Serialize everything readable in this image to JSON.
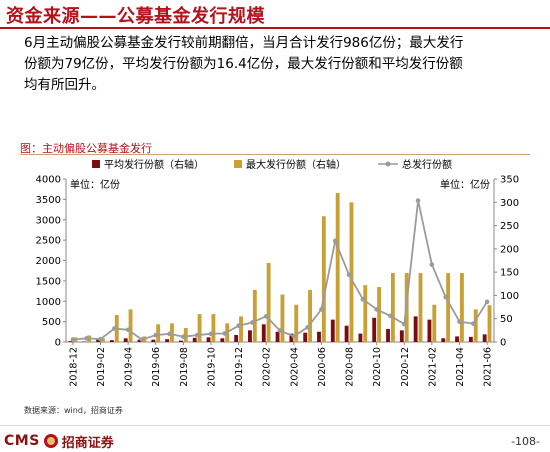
{
  "header": {
    "title": "资金来源——公募基金发行规模"
  },
  "summary": {
    "lines": [
      "6月主动偏股公募基金发行较前期翻倍，当月合计发行986亿份；最大发行",
      "份额为79亿份，平均发行份额为16.4亿份，最大发行份额和平均发行份额",
      "均有所回升。"
    ]
  },
  "chart_heading": "图：主动偏股公募基金发行",
  "source": "数据来源：wind，招商证券",
  "footer": {
    "logo_text": "CMS",
    "logo_cn": "招商证券",
    "page": "-108-"
  },
  "colors": {
    "accent": "#b5111a",
    "avg_bar": "#7b0c12",
    "max_bar": "#c8a035",
    "total_line": "#9b9b9b"
  },
  "chart_data": {
    "type": "bar+line",
    "categories": [
      "2018-12",
      "2019-01",
      "2019-02",
      "2019-03",
      "2019-04",
      "2019-05",
      "2019-06",
      "2019-07",
      "2019-08",
      "2019-09",
      "2019-10",
      "2019-11",
      "2019-12",
      "2020-01",
      "2020-02",
      "2020-03",
      "2020-04",
      "2020-05",
      "2020-06",
      "2020-07",
      "2020-08",
      "2020-09",
      "2020-10",
      "2020-11",
      "2020-12",
      "2021-01",
      "2021-02",
      "2021-03",
      "2021-04",
      "2021-05",
      "2021-06"
    ],
    "x_tick_labels": [
      "2018-12",
      "2019-02",
      "2019-04",
      "2019-06",
      "2019-08",
      "2019-10",
      "2019-12",
      "2020-02",
      "2020-04",
      "2020-06",
      "2020-08",
      "2020-10",
      "2020-12",
      "2021-02",
      "2021-04",
      "2021-06"
    ],
    "left_axis": {
      "label": "单位：亿份",
      "ticks": [
        0,
        500,
        1000,
        1500,
        2000,
        2500,
        3000,
        3500,
        4000
      ],
      "range": [
        0,
        4000
      ]
    },
    "right_axis": {
      "label": "单位：亿份",
      "ticks": [
        0,
        50,
        100,
        150,
        200,
        250,
        300,
        350
      ],
      "range": [
        0,
        350
      ]
    },
    "series": [
      {
        "name": "平均发行份额（右轴）",
        "kind": "bar",
        "axis": "right",
        "values": [
          2,
          1,
          5,
          4,
          8,
          5,
          5,
          6,
          3,
          9,
          10,
          8,
          15,
          25,
          38,
          22,
          18,
          20,
          22,
          48,
          35,
          18,
          52,
          28,
          25,
          55,
          48,
          8,
          12,
          11,
          16.4
        ]
      },
      {
        "name": "最大发行份额（右轴）",
        "kind": "bar",
        "axis": "right",
        "values": [
          10,
          14,
          8,
          58,
          70,
          12,
          38,
          40,
          30,
          60,
          60,
          40,
          55,
          112,
          170,
          102,
          80,
          112,
          270,
          320,
          300,
          122,
          118,
          148,
          148,
          148,
          80,
          148,
          148,
          70,
          79
        ]
      },
      {
        "name": "总发行份额",
        "kind": "line",
        "axis": "left",
        "values": [
          60,
          90,
          70,
          330,
          300,
          60,
          170,
          200,
          130,
          170,
          200,
          210,
          400,
          480,
          630,
          280,
          140,
          360,
          800,
          2480,
          1650,
          1050,
          800,
          640,
          440,
          3470,
          1900,
          1100,
          500,
          450,
          986
        ]
      }
    ],
    "legend_position": "top",
    "grid": false
  }
}
